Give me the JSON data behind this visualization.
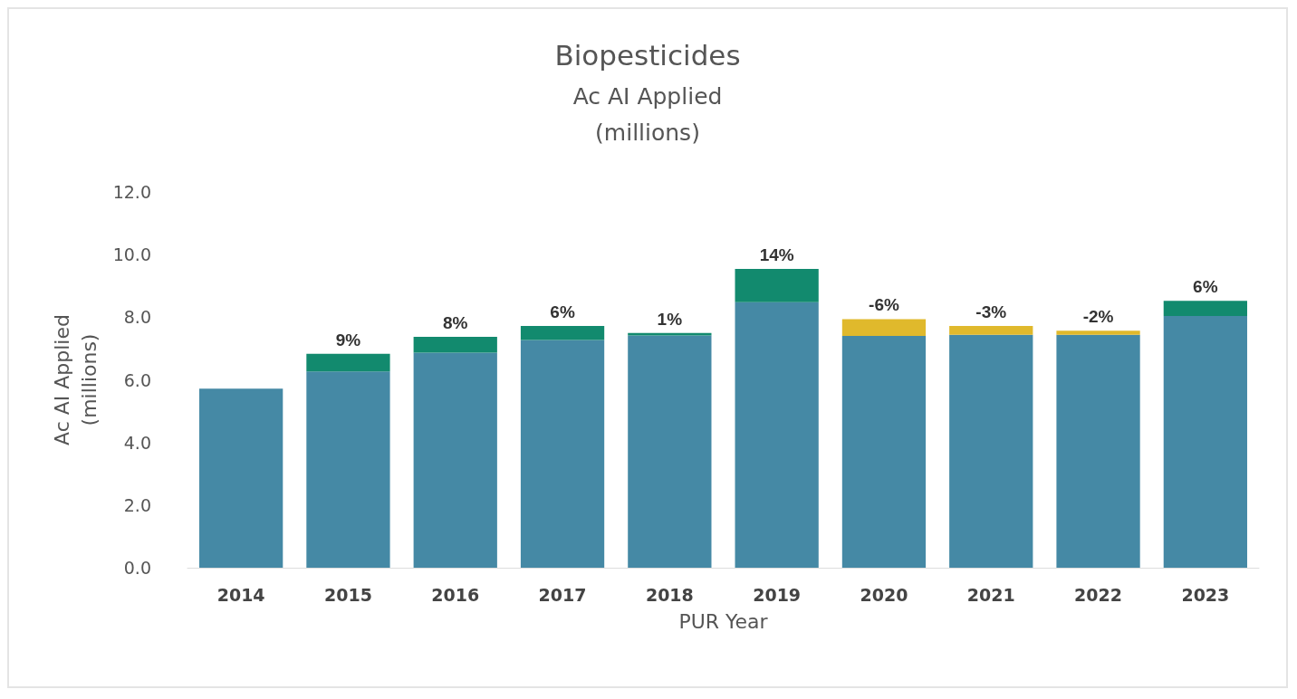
{
  "chart_data": {
    "type": "bar",
    "title": "Biopesticides",
    "subtitle": "Ac AI Applied\n(millions)",
    "xlabel": "PUR Year",
    "ylabel": "Ac AI Applied\n(millions)",
    "categories": [
      "2014",
      "2015",
      "2016",
      "2017",
      "2018",
      "2019",
      "2020",
      "2021",
      "2022",
      "2023"
    ],
    "stacked": true,
    "series": [
      {
        "color": "#4589a5",
        "values": [
          5.72,
          6.27,
          6.87,
          7.27,
          7.42,
          8.48,
          7.4,
          7.44,
          7.44,
          8.04
        ]
      },
      {
        "color": "#128a6e",
        "values": [
          null,
          0.56,
          0.5,
          0.45,
          0.08,
          1.06,
          null,
          null,
          null,
          0.48
        ]
      },
      {
        "color": "#e0b92c",
        "values": [
          null,
          null,
          null,
          null,
          null,
          null,
          0.54,
          0.28,
          0.13,
          null
        ]
      }
    ],
    "annotations": [
      {
        "text": "9%",
        "x": "2015",
        "y": 6.83
      },
      {
        "text": "8%",
        "x": "2016",
        "y": 7.37
      },
      {
        "text": "6%",
        "x": "2017",
        "y": 7.72
      },
      {
        "text": "1%",
        "x": "2018",
        "y": 7.5
      },
      {
        "text": "14%",
        "x": "2019",
        "y": 9.54
      },
      {
        "text": "-6%",
        "x": "2020",
        "y": 7.94
      },
      {
        "text": "-3%",
        "x": "2021",
        "y": 7.72
      },
      {
        "text": "-2%",
        "x": "2022",
        "y": 7.57
      },
      {
        "text": "6%",
        "x": "2023",
        "y": 8.52
      }
    ],
    "ylim": [
      0,
      12
    ],
    "yticks": [
      {
        "value": 0,
        "label": "0.0"
      },
      {
        "value": 2,
        "label": "2.0"
      },
      {
        "value": 4,
        "label": "4.0"
      },
      {
        "value": 6,
        "label": "6.0"
      },
      {
        "value": 8,
        "label": "8.0"
      },
      {
        "value": 10,
        "label": "10.0"
      },
      {
        "value": 12,
        "label": "12.0"
      }
    ],
    "grid": false
  }
}
